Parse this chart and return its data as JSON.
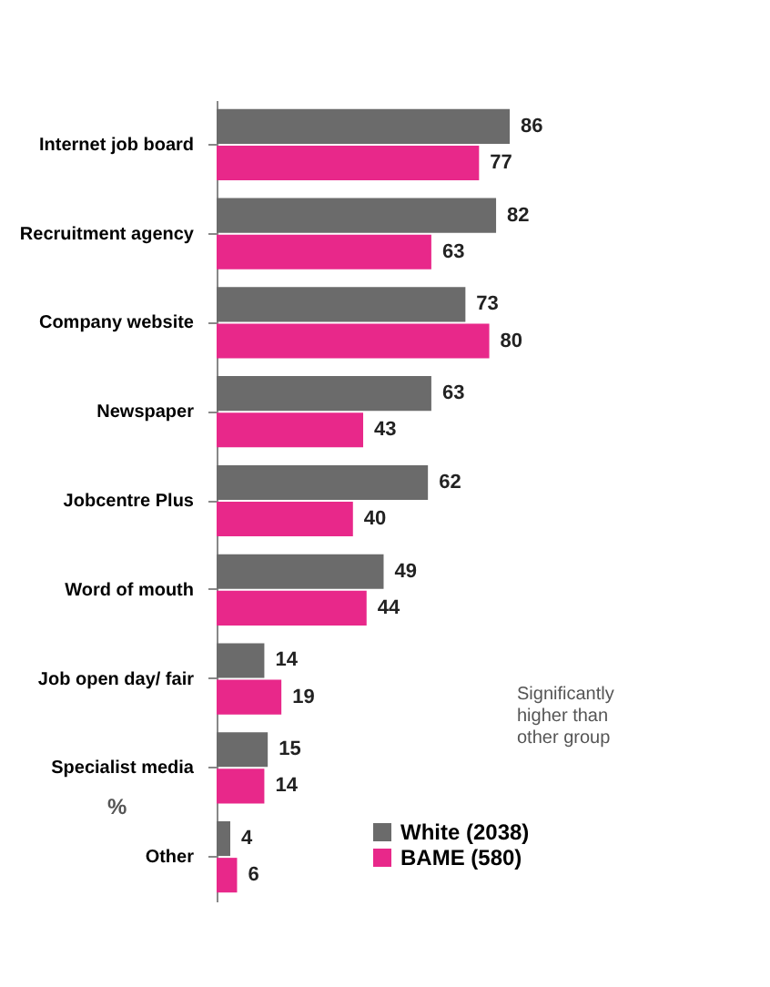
{
  "chart_data": {
    "type": "bar",
    "orientation": "horizontal",
    "categories": [
      "Internet job board",
      "Recruitment agency",
      "Company website",
      "Newspaper",
      "Jobcentre Plus",
      "Word of mouth",
      "Job open day/ fair",
      "Specialist media",
      "Other"
    ],
    "series": [
      {
        "name": "White (2038)",
        "color": "#6b6b6b",
        "values": [
          86,
          82,
          73,
          63,
          62,
          49,
          14,
          15,
          4
        ]
      },
      {
        "name": "BAME (580)",
        "color": "#e8288a",
        "values": [
          77,
          63,
          80,
          43,
          40,
          44,
          19,
          14,
          6
        ]
      }
    ],
    "data_labels": true,
    "legend": "bottom right",
    "grid": false,
    "annotations": [
      "Significantly higher than other group",
      "%"
    ]
  }
}
